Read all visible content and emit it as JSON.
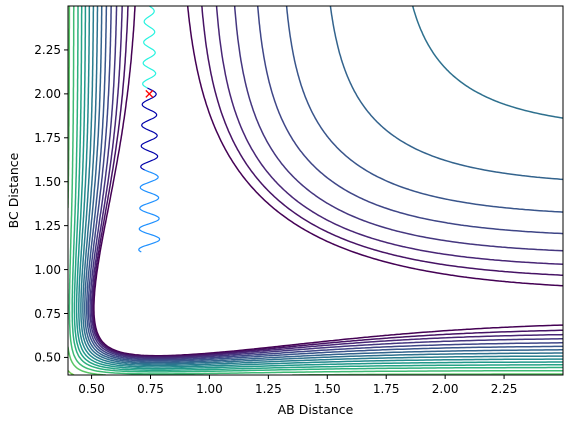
{
  "chart_data": {
    "type": "contour",
    "xlabel": "AB Distance",
    "ylabel": "BC Distance",
    "xlim": [
      0.4,
      2.5
    ],
    "ylim": [
      0.4,
      2.5
    ],
    "xticks": [
      "0.50",
      "0.75",
      "1.00",
      "1.25",
      "1.50",
      "1.75",
      "2.00",
      "2.25"
    ],
    "yticks": [
      "0.50",
      "0.75",
      "1.00",
      "1.25",
      "1.50",
      "1.75",
      "2.00",
      "2.25"
    ],
    "grid": false,
    "colormap": "viridis",
    "contour_levels": [
      0.05,
      0.12,
      0.2,
      0.3,
      0.42,
      0.55,
      0.7,
      0.86,
      1.04,
      1.24,
      1.46,
      1.7,
      1.96,
      2.3,
      2.7,
      3.3,
      4.0,
      5.0,
      6.5,
      8.5
    ],
    "surface": {
      "kind": "LEPS-like double Morse",
      "equilibrium_distance": 0.78,
      "morse_a": 2.6,
      "coupling": 0.35
    },
    "start_marker": {
      "x": 0.745,
      "y": 2.0,
      "symbol": "x",
      "color": "#ff0000"
    },
    "trajectory": {
      "x_center": 0.745,
      "x_amplitude_max": 0.045,
      "y_start": 2.5,
      "y_end": 1.1,
      "oscillation_wavelength": 0.118,
      "colors": [
        "#27f2df",
        "#0000aa",
        "#1e90ff"
      ]
    }
  }
}
